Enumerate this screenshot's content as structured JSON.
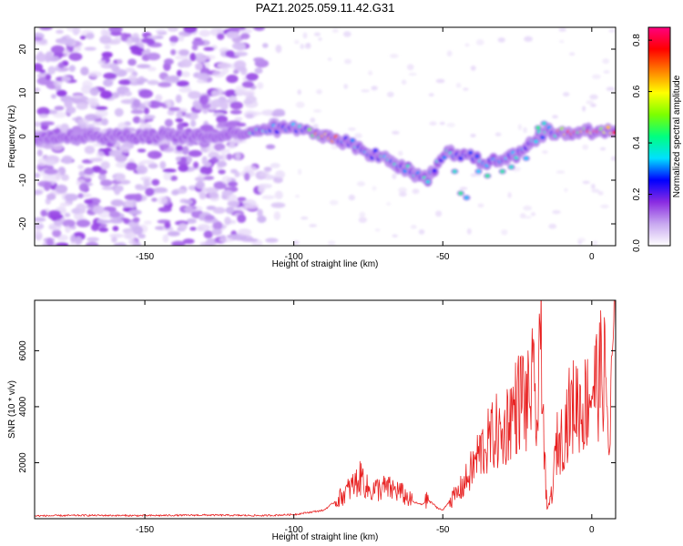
{
  "title": "PAZ1.2025.059.11.42.G31",
  "chart_data": [
    {
      "type": "heatmap",
      "xlabel": "Height of straight line (km)",
      "ylabel": "Frequency (Hz)",
      "xlim": [
        -187,
        8
      ],
      "ylim": [
        -25,
        25
      ],
      "xticks": [
        -150,
        -100,
        -50,
        0
      ],
      "yticks": [
        -20,
        -10,
        0,
        10,
        20
      ],
      "ridge": {
        "x": [
          -187,
          -150,
          -120,
          -110,
          -100,
          -90,
          -80,
          -70,
          -60,
          -55,
          -50,
          -45,
          -40,
          -35,
          -30,
          -25,
          -20,
          -15,
          -10,
          -5,
          0,
          8
        ],
        "frequency": [
          0,
          0,
          0.5,
          2,
          2,
          0,
          -2,
          -5,
          -8,
          -10,
          -4,
          -4,
          -5,
          -6,
          -5,
          -4,
          -1,
          1,
          1,
          1,
          1,
          1
        ]
      },
      "colorbar": {
        "label": "Normalized spectral amplitude",
        "ticks": [
          0.0,
          0.2,
          0.4,
          0.6,
          0.8
        ],
        "range": [
          0,
          0.85
        ],
        "colors": [
          "#ffffff",
          "#c8a8f0",
          "#8a2be2",
          "#0000ff",
          "#00e0ff",
          "#00ff80",
          "#7cff00",
          "#ffff00",
          "#ff8000",
          "#ff0000",
          "#ff0080"
        ]
      }
    },
    {
      "type": "line",
      "xlabel": "Height of straight line (km)",
      "ylabel": "SNR (10 * v/v)",
      "xlim": [
        -187,
        8
      ],
      "ylim": [
        0,
        7800
      ],
      "xticks": [
        -150,
        -100,
        -50,
        0
      ],
      "yticks": [
        2000,
        4000,
        6000
      ],
      "series": [
        {
          "color": "#e82020",
          "x": [
            -187,
            -170,
            -150,
            -130,
            -110,
            -100,
            -90,
            -85,
            -80,
            -77,
            -75,
            -70,
            -65,
            -60,
            -57,
            -55,
            -52,
            -50,
            -48,
            -45,
            -42,
            -40,
            -38,
            -35,
            -32,
            -30,
            -28,
            -25,
            -23,
            -22,
            -20,
            -18,
            -17,
            -16,
            -15,
            -13,
            -12,
            -10,
            -8,
            -5,
            -3,
            0,
            2,
            4,
            5,
            6,
            7,
            8
          ],
          "y": [
            100,
            120,
            110,
            130,
            110,
            150,
            300,
            700,
            1200,
            1500,
            1000,
            1100,
            1000,
            600,
            500,
            700,
            400,
            300,
            600,
            900,
            1400,
            1800,
            2300,
            2700,
            3100,
            2800,
            3600,
            4100,
            4500,
            3900,
            4800,
            3300,
            7700,
            2400,
            300,
            1100,
            2600,
            2900,
            3700,
            4200,
            3900,
            4700,
            4900,
            5400,
            4400,
            2100,
            6100,
            6500
          ]
        }
      ]
    }
  ]
}
